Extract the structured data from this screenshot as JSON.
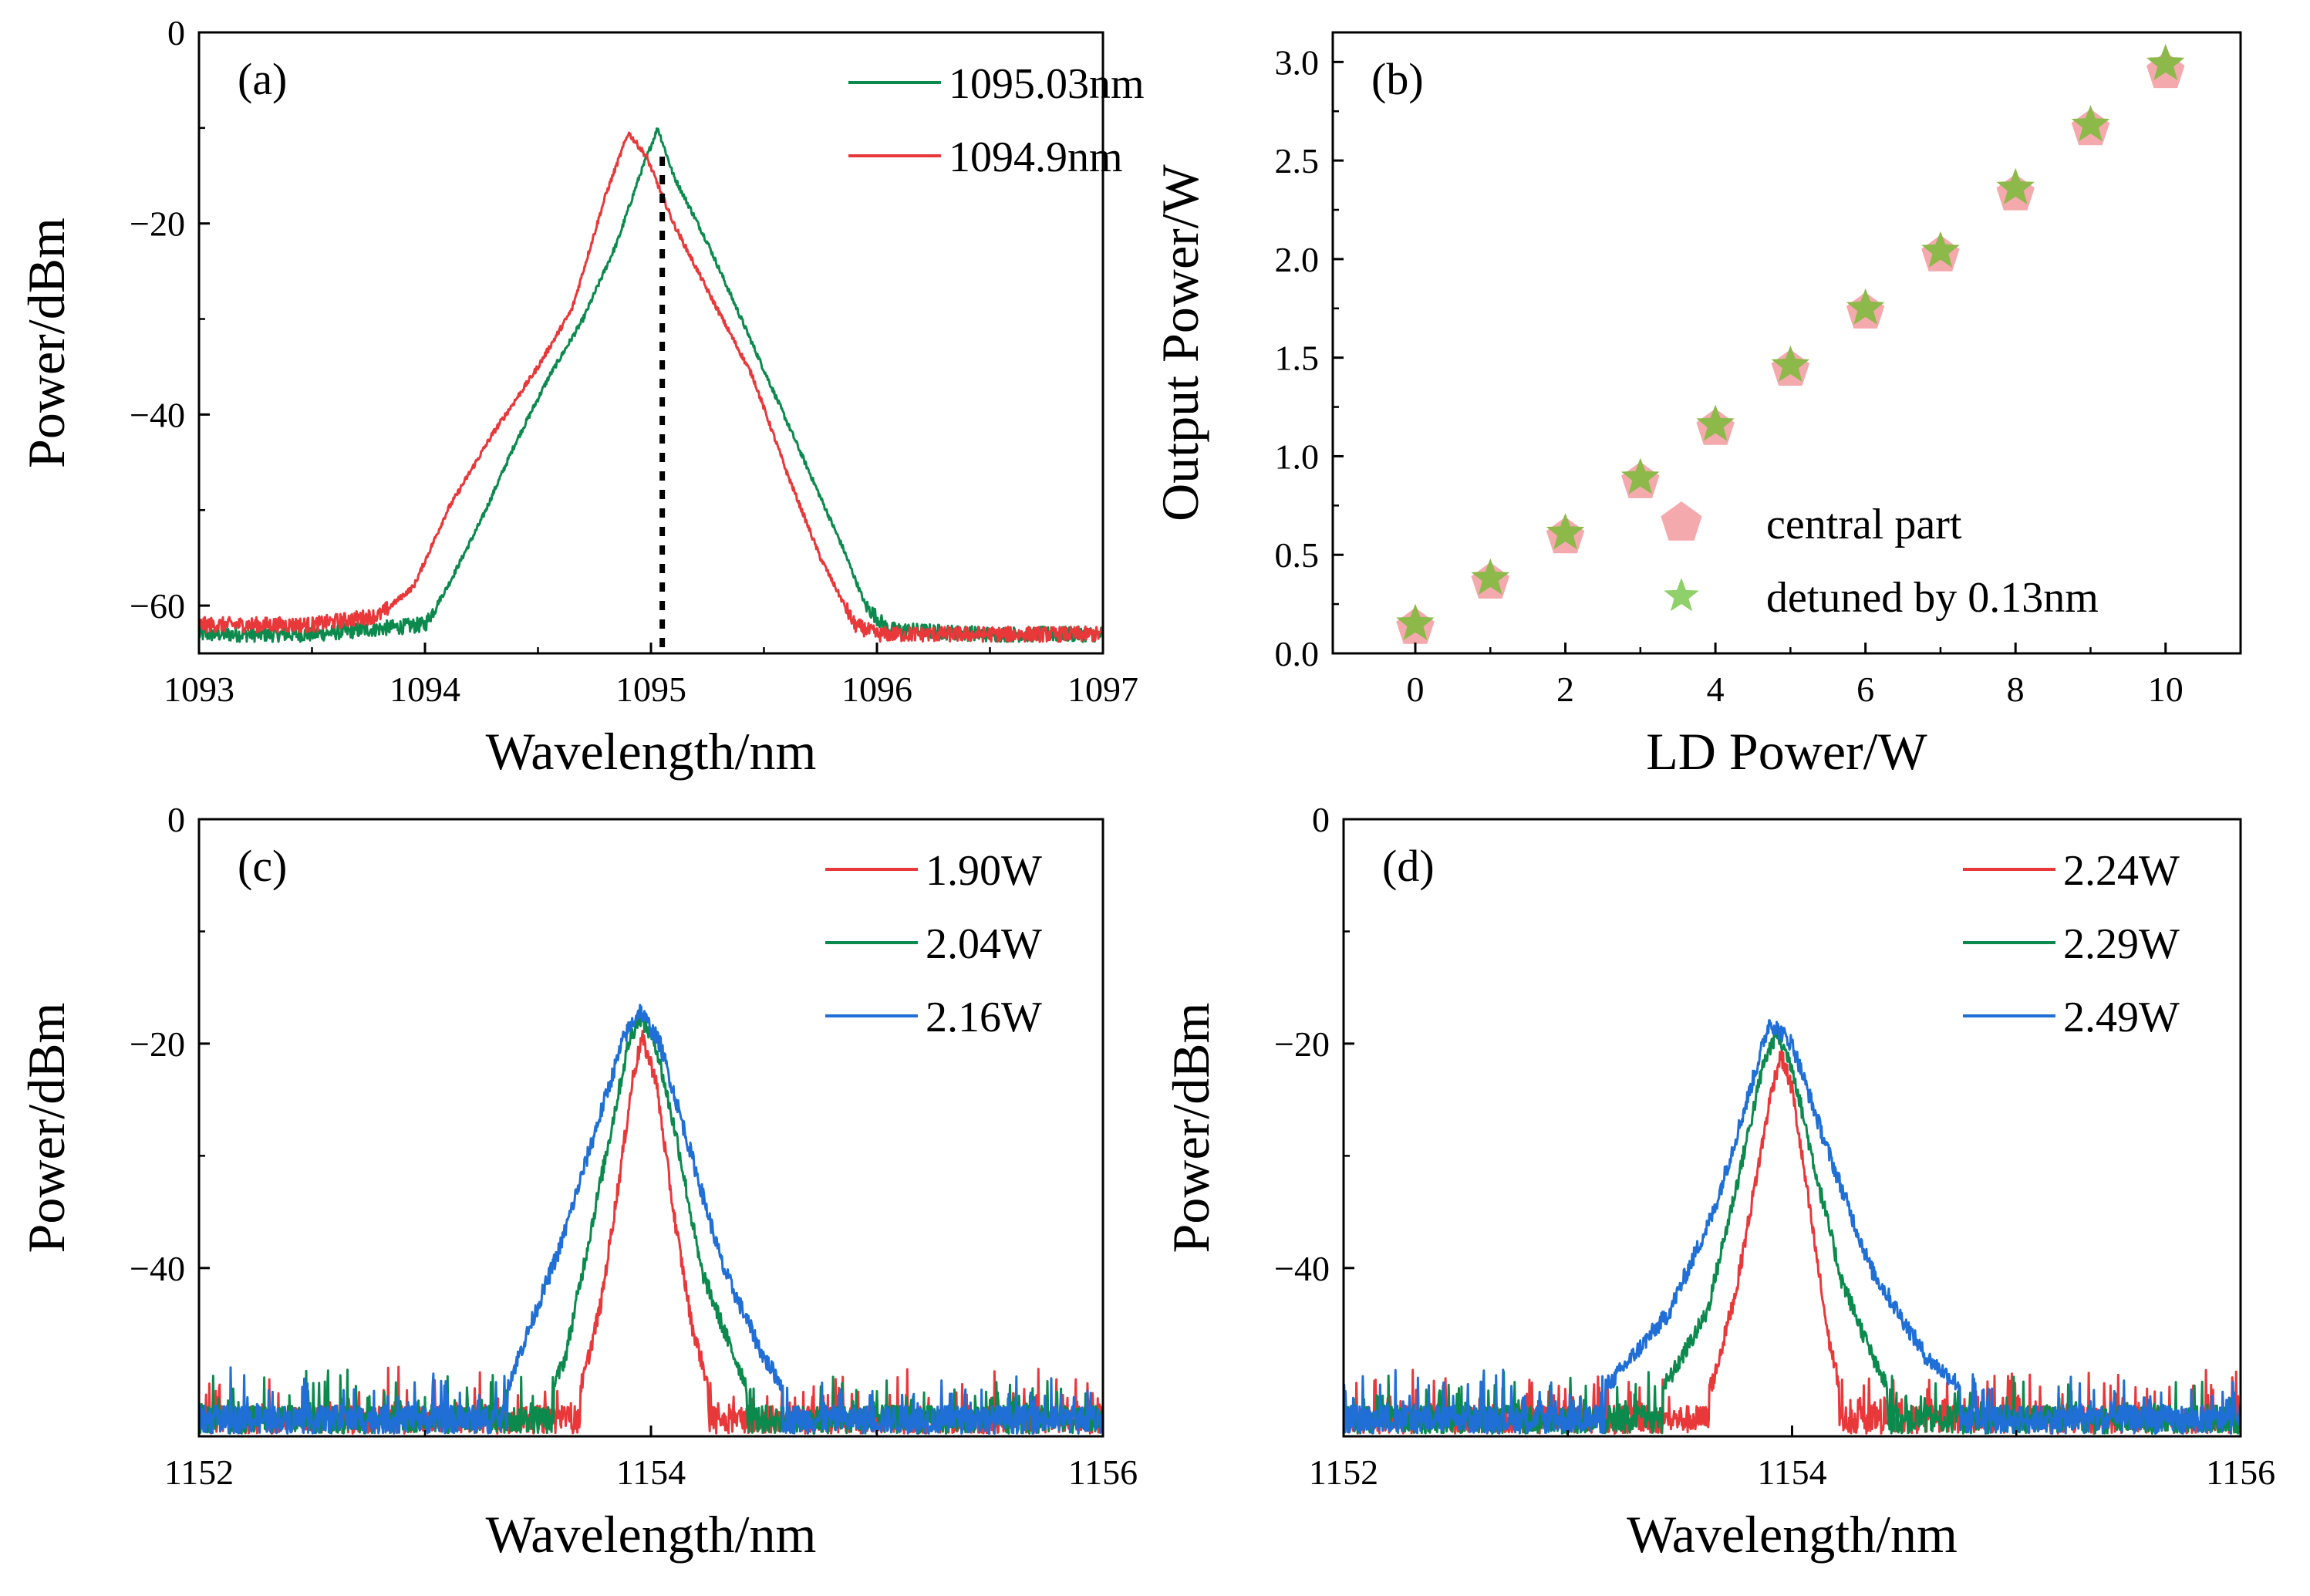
{
  "chart_data": [
    {
      "id": "a",
      "panel_label": "(a)",
      "type": "line",
      "xlabel": "Wavelength/nm",
      "ylabel": "Power/dBm",
      "xlim": [
        1093,
        1097
      ],
      "ylim": [
        -65,
        0
      ],
      "xticks": [
        1093,
        1094,
        1095,
        1096,
        1097
      ],
      "yticks": [
        0,
        -20,
        -40,
        -60
      ],
      "xtick_labels": [
        "1093",
        "1094",
        "1095",
        "1096",
        "1097"
      ],
      "ytick_labels": [
        "0",
        "−20",
        "−40",
        "−60"
      ],
      "marker_line_x": 1095.05,
      "legend_position": "top-right",
      "series": [
        {
          "name": "1095.03nm",
          "color": "#0c8a4d",
          "noise_floor": -63,
          "x": [
            1093,
            1093.5,
            1094.0,
            1094.1,
            1094.25,
            1094.4,
            1094.55,
            1094.7,
            1094.85,
            1094.95,
            1095.03,
            1095.1,
            1095.25,
            1095.4,
            1095.55,
            1095.7,
            1095.85,
            1095.95,
            1096.05,
            1096.5,
            1097
          ],
          "y": [
            -63,
            -63,
            -62,
            -58,
            -51,
            -43,
            -36,
            -30,
            -22,
            -15,
            -10,
            -15,
            -22,
            -30,
            -38,
            -46,
            -54,
            -60,
            -62.5,
            -63,
            -63
          ]
        },
        {
          "name": "1094.9nm",
          "color": "#e8383a",
          "noise_floor": -63,
          "x": [
            1093,
            1093.5,
            1093.8,
            1093.95,
            1094.1,
            1094.3,
            1094.5,
            1094.65,
            1094.8,
            1094.9,
            1094.98,
            1095.1,
            1095.25,
            1095.45,
            1095.6,
            1095.75,
            1095.9,
            1096.0,
            1096.5,
            1097
          ],
          "y": [
            -62,
            -62,
            -61,
            -58,
            -50,
            -42,
            -35,
            -29,
            -17,
            -10.5,
            -13,
            -20,
            -27,
            -36,
            -46,
            -55,
            -62,
            -63,
            -63,
            -63
          ]
        }
      ]
    },
    {
      "id": "b",
      "panel_label": "(b)",
      "type": "scatter",
      "xlabel": "LD Power/W",
      "ylabel": "Output Power/W",
      "xlim": [
        -1.1,
        11
      ],
      "ylim": [
        0,
        3.15
      ],
      "xticks": [
        0,
        2,
        4,
        6,
        8,
        10
      ],
      "yticks": [
        0.0,
        0.5,
        1.0,
        1.5,
        2.0,
        2.5,
        3.0
      ],
      "xtick_labels": [
        "0",
        "2",
        "4",
        "6",
        "8",
        "10"
      ],
      "ytick_labels": [
        "0.0",
        "0.5",
        "1.0",
        "1.5",
        "2.0",
        "2.5",
        "3.0"
      ],
      "legend_position": "bottom-right",
      "series": [
        {
          "name": "central part",
          "marker": "pentagon",
          "color": "#f4a9ad",
          "x": [
            0,
            1,
            2,
            3,
            4,
            5,
            6,
            7,
            8,
            9,
            10
          ],
          "y": [
            0.13,
            0.36,
            0.59,
            0.87,
            1.14,
            1.44,
            1.73,
            2.02,
            2.33,
            2.66,
            2.95
          ]
        },
        {
          "name": "detuned by 0.13nm",
          "marker": "star",
          "color": "#8db84a",
          "legend_color": "#8fd06a",
          "x": [
            0,
            1,
            2,
            3,
            4,
            5,
            6,
            7,
            8,
            9,
            10
          ],
          "y": [
            0.15,
            0.38,
            0.61,
            0.89,
            1.16,
            1.46,
            1.75,
            2.04,
            2.36,
            2.68,
            2.99
          ]
        }
      ]
    },
    {
      "id": "c",
      "panel_label": "(c)",
      "type": "line",
      "xlabel": "Wavelength/nm",
      "ylabel": "Power/dBm",
      "xlim": [
        1152,
        1156
      ],
      "ylim": [
        -55,
        0
      ],
      "xticks": [
        1152,
        1154,
        1156
      ],
      "yticks": [
        0,
        -20,
        -40
      ],
      "xtick_labels": [
        "1152",
        "1154",
        "1156"
      ],
      "ytick_labels": [
        "0",
        "−20",
        "−40"
      ],
      "legend_position": "top-right",
      "series": [
        {
          "name": "1.90W",
          "color": "#e8383a",
          "noise_floor": -53.5,
          "x": [
            1153.6,
            1153.7,
            1153.78,
            1153.86,
            1153.92,
            1153.96,
            1154.02,
            1154.1,
            1154.18,
            1154.26,
            1154.35
          ],
          "y": [
            -54,
            -50,
            -43,
            -32,
            -23,
            -19.5,
            -23,
            -35,
            -45,
            -51,
            -54
          ]
        },
        {
          "name": "2.04W",
          "color": "#0c8a4d",
          "noise_floor": -53.5,
          "x": [
            1153.5,
            1153.62,
            1153.72,
            1153.82,
            1153.9,
            1153.95,
            1154.02,
            1154.12,
            1154.22,
            1154.35,
            1154.5
          ],
          "y": [
            -54,
            -48,
            -38,
            -28,
            -20,
            -17.5,
            -20,
            -29,
            -40,
            -47,
            -54
          ]
        },
        {
          "name": "2.16W",
          "color": "#1f6fd6",
          "noise_floor": -53.5,
          "x": [
            1153.3,
            1153.45,
            1153.6,
            1153.75,
            1153.88,
            1153.95,
            1154.04,
            1154.18,
            1154.32,
            1154.5,
            1154.7
          ],
          "y": [
            -54,
            -46,
            -38,
            -28,
            -19.5,
            -17,
            -20,
            -30,
            -40,
            -48,
            -54
          ]
        }
      ]
    },
    {
      "id": "d",
      "panel_label": "(d)",
      "type": "line",
      "xlabel": "Wavelength/nm",
      "ylabel": "Power/dBm",
      "xlim": [
        1152,
        1156
      ],
      "ylim": [
        -55,
        0
      ],
      "xticks": [
        1152,
        1154,
        1156
      ],
      "yticks": [
        0,
        -20,
        -40
      ],
      "xtick_labels": [
        "1152",
        "1154",
        "1156"
      ],
      "ytick_labels": [
        "0",
        "−20",
        "−40"
      ],
      "legend_position": "top-right",
      "series": [
        {
          "name": "2.24W",
          "color": "#e8383a",
          "noise_floor": -53.5,
          "x": [
            1153.5,
            1153.65,
            1153.75,
            1153.84,
            1153.91,
            1153.95,
            1154.0,
            1154.08,
            1154.16,
            1154.25
          ],
          "y": [
            -54,
            -50,
            -42,
            -32,
            -24,
            -21,
            -24,
            -35,
            -46,
            -54
          ]
        },
        {
          "name": "2.29W",
          "color": "#0c8a4d",
          "noise_floor": -53.5,
          "x": [
            1153.3,
            1153.45,
            1153.62,
            1153.76,
            1153.87,
            1153.93,
            1154.0,
            1154.1,
            1154.22,
            1154.38,
            1154.5
          ],
          "y": [
            -53,
            -50,
            -44,
            -32,
            -22,
            -19,
            -22,
            -31,
            -41,
            -49,
            -53
          ]
        },
        {
          "name": "2.49W",
          "color": "#1f6fd6",
          "noise_floor": -53.5,
          "x": [
            1153.0,
            1153.2,
            1153.45,
            1153.65,
            1153.8,
            1153.9,
            1154.0,
            1154.15,
            1154.35,
            1154.6,
            1154.9
          ],
          "y": [
            -53,
            -50,
            -44,
            -35,
            -25,
            -18,
            -20,
            -29,
            -40,
            -48,
            -53
          ]
        }
      ]
    }
  ]
}
